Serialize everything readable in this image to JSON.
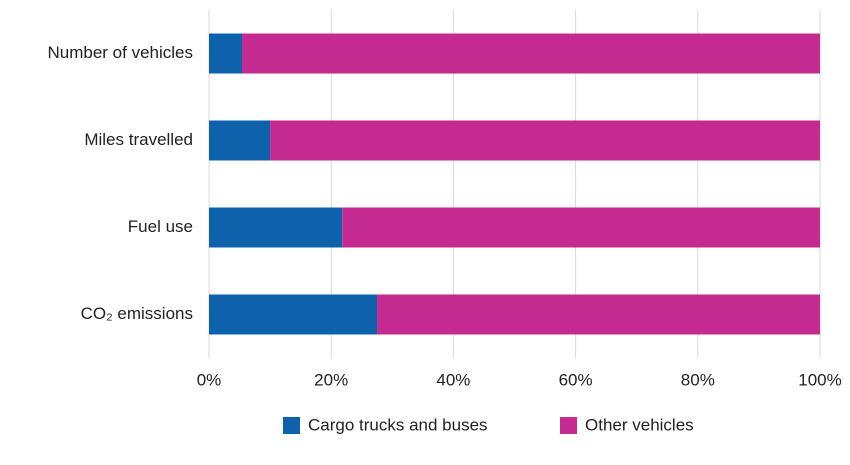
{
  "chart_data": {
    "type": "stacked-bar-horizontal",
    "categories": [
      "Number of vehicles",
      "Miles travelled",
      "Fuel use",
      "CO₂ emissions"
    ],
    "series": [
      {
        "name": "Cargo trucks and buses",
        "color": "#0d62ab",
        "values": [
          5.4,
          10,
          21.8,
          27.5
        ]
      },
      {
        "name": "Other vehicles",
        "color": "#c42a8f",
        "values": [
          94.6,
          90,
          78.2,
          72.5
        ]
      }
    ],
    "xlim": [
      0,
      100
    ],
    "xticks": [
      {
        "value": 0,
        "label": "0%"
      },
      {
        "value": 20,
        "label": "20%"
      },
      {
        "value": 40,
        "label": "40%"
      },
      {
        "value": 60,
        "label": "60%"
      },
      {
        "value": 80,
        "label": "80%"
      },
      {
        "value": 100,
        "label": "100%"
      }
    ],
    "grid": true,
    "legend": "bottom"
  }
}
